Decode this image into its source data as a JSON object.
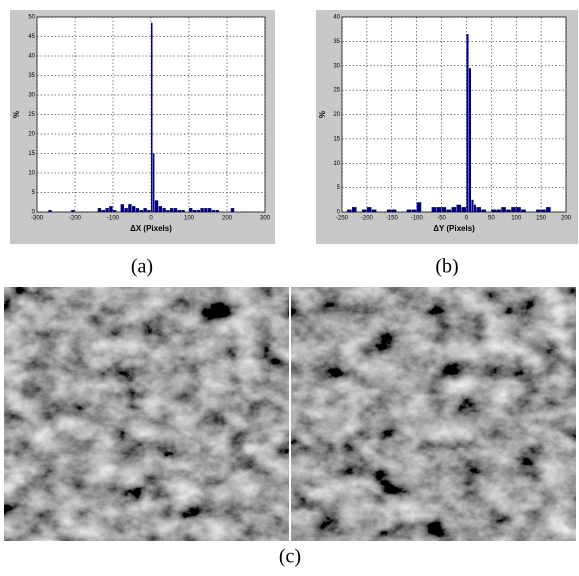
{
  "chart_data": [
    {
      "type": "histogram",
      "caption": "(a)",
      "x_label": "ΔX (Pixels)",
      "y_label": "%",
      "bins": [
        -270,
        -260,
        -250,
        -240,
        -230,
        -220,
        -210,
        -200,
        -190,
        -180,
        -170,
        -160,
        -150,
        -140,
        -130,
        -120,
        -110,
        -100,
        -90,
        -80,
        -70,
        -60,
        -50,
        -40,
        -30,
        -20,
        -10,
        0,
        5,
        10,
        20,
        30,
        40,
        50,
        60,
        70,
        80,
        90,
        100,
        110,
        120,
        130,
        140,
        150,
        160,
        170,
        180,
        190,
        200,
        210,
        220
      ],
      "counts": [
        0.5,
        0,
        0,
        0,
        0,
        0,
        0.5,
        0,
        0,
        0,
        0,
        0,
        0,
        1,
        0.5,
        1,
        1.5,
        0.5,
        0,
        2,
        1,
        2,
        1.5,
        1,
        0.5,
        1,
        0.5,
        48.5,
        15,
        3,
        1.5,
        1,
        0.5,
        1,
        1,
        0.5,
        0.5,
        0,
        1,
        0.5,
        0.5,
        1,
        1,
        1,
        0.5,
        0.5,
        0,
        0,
        0,
        1
      ],
      "color": "#000080",
      "xlim": [
        -300,
        300
      ],
      "xticks": [
        -300,
        -200,
        -100,
        0,
        100,
        200,
        300
      ],
      "ylim": [
        0,
        50
      ],
      "yticks": [
        0,
        5,
        10,
        15,
        20,
        25,
        30,
        35,
        40,
        45,
        50
      ],
      "grid": true
    },
    {
      "type": "histogram",
      "caption": "(b)",
      "x_label": "ΔY (Pixels)",
      "y_label": "%",
      "bins": [
        -240,
        -230,
        -220,
        -210,
        -200,
        -190,
        -180,
        -170,
        -160,
        -150,
        -140,
        -130,
        -120,
        -110,
        -100,
        -90,
        -80,
        -70,
        -60,
        -50,
        -40,
        -30,
        -20,
        -10,
        0,
        5,
        10,
        15,
        20,
        30,
        40,
        50,
        60,
        70,
        80,
        90,
        100,
        110,
        120,
        130,
        140,
        150,
        160,
        170,
        180
      ],
      "counts": [
        0.5,
        1,
        0,
        0.5,
        1,
        0.5,
        0,
        0,
        0.5,
        0.5,
        0,
        0,
        0.5,
        0.5,
        2,
        0,
        0,
        1,
        1,
        1,
        0.5,
        1,
        1.5,
        1,
        36.5,
        29.5,
        2.5,
        1.5,
        1,
        0.5,
        0,
        0.5,
        0.5,
        1,
        0.5,
        1,
        1,
        0.5,
        0,
        0,
        0.5,
        0.5,
        1,
        0
      ],
      "color": "#000080",
      "xlim": [
        -250,
        200
      ],
      "xticks": [
        -250,
        -200,
        -150,
        -100,
        -50,
        0,
        50,
        100,
        150,
        200
      ],
      "ylim": [
        0,
        40
      ],
      "yticks": [
        0,
        5,
        10,
        15,
        20,
        25,
        30,
        35,
        40
      ],
      "grid": true
    }
  ],
  "image_caption": "(c)"
}
